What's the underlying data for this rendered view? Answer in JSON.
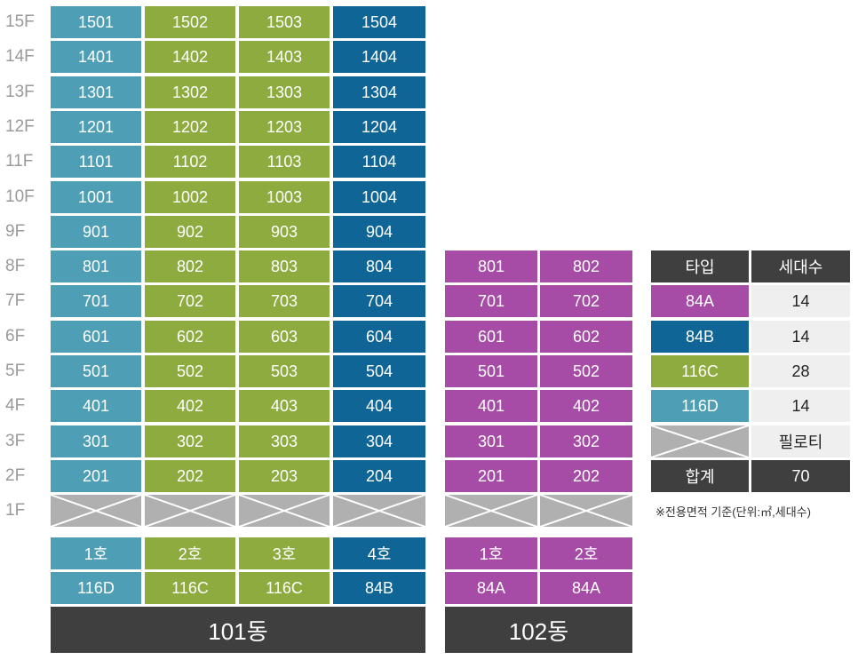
{
  "floors": [
    "15F",
    "14F",
    "13F",
    "12F",
    "11F",
    "10F",
    "9F",
    "8F",
    "7F",
    "6F",
    "5F",
    "4F",
    "3F",
    "2F",
    "1F"
  ],
  "colors": {
    "84A": "#a64ca6",
    "84B": "#0f6696",
    "116C": "#8eab3f",
    "116D": "#4e9fb6",
    "pilotis": "#b0b0b0",
    "dark": "#3f3f3f"
  },
  "building_101": {
    "name": "101동",
    "units_rows": [
      [
        "1501",
        "1502",
        "1503",
        "1504"
      ],
      [
        "1401",
        "1402",
        "1403",
        "1404"
      ],
      [
        "1301",
        "1302",
        "1303",
        "1304"
      ],
      [
        "1201",
        "1202",
        "1203",
        "1204"
      ],
      [
        "1101",
        "1102",
        "1103",
        "1104"
      ],
      [
        "1001",
        "1002",
        "1003",
        "1004"
      ],
      [
        "901",
        "902",
        "903",
        "904"
      ],
      [
        "801",
        "802",
        "803",
        "804"
      ],
      [
        "701",
        "702",
        "703",
        "704"
      ],
      [
        "601",
        "602",
        "603",
        "604"
      ],
      [
        "501",
        "502",
        "503",
        "504"
      ],
      [
        "401",
        "402",
        "403",
        "404"
      ],
      [
        "301",
        "302",
        "303",
        "304"
      ],
      [
        "201",
        "202",
        "203",
        "204"
      ]
    ],
    "column_types": [
      "116D",
      "116C",
      "116C",
      "84B"
    ],
    "line_labels": [
      "1호",
      "2호",
      "3호",
      "4호"
    ],
    "type_labels": [
      "116D",
      "116C",
      "116C",
      "84B"
    ]
  },
  "building_102": {
    "name": "102동",
    "units_rows": [
      [
        "801",
        "802"
      ],
      [
        "701",
        "702"
      ],
      [
        "601",
        "602"
      ],
      [
        "501",
        "502"
      ],
      [
        "401",
        "402"
      ],
      [
        "301",
        "302"
      ],
      [
        "201",
        "202"
      ]
    ],
    "column_types": [
      "84A",
      "84A"
    ],
    "line_labels": [
      "1호",
      "2호"
    ],
    "type_labels": [
      "84A",
      "84A"
    ]
  },
  "legend": {
    "header_type": "타입",
    "header_count": "세대수",
    "rows": [
      {
        "type": "84A",
        "count": "14"
      },
      {
        "type": "84B",
        "count": "14"
      },
      {
        "type": "116C",
        "count": "28"
      },
      {
        "type": "116D",
        "count": "14"
      }
    ],
    "pilotis_label": "필로티",
    "total_label": "합계",
    "total_count": "70",
    "note": "※전용면적 기준(단위:㎡,세대수)"
  }
}
